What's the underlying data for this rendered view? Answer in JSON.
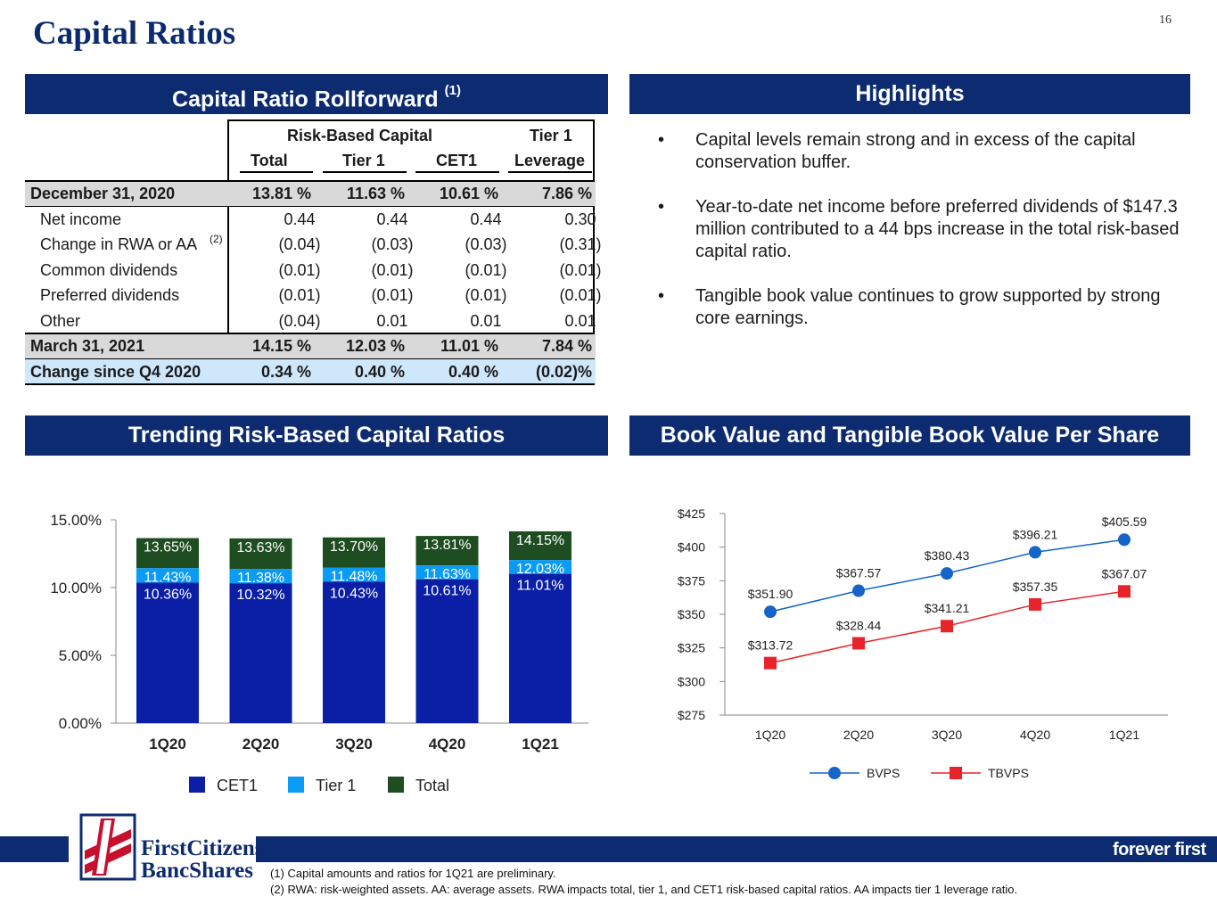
{
  "page": {
    "title": "Capital Ratios",
    "number": "16"
  },
  "rollforward": {
    "header": "Capital Ratio Rollforward",
    "header_note": "(1)",
    "group_labels": {
      "risk_based": "Risk-Based Capital",
      "tier1": "Tier 1"
    },
    "columns": [
      "Total",
      "Tier 1",
      "CET1",
      "Leverage"
    ],
    "rows": [
      {
        "label": "December 31, 2020",
        "values": [
          "13.81 %",
          "11.63 %",
          "10.61 %",
          "7.86 %"
        ]
      },
      {
        "label": "Net income",
        "values": [
          "0.44",
          "0.44",
          "0.44",
          "0.30"
        ]
      },
      {
        "label": "Change in RWA or AA",
        "note": "(2)",
        "values": [
          "(0.04)",
          "(0.03)",
          "(0.03)",
          "(0.31)"
        ]
      },
      {
        "label": "Common dividends",
        "values": [
          "(0.01)",
          "(0.01)",
          "(0.01)",
          "(0.01)"
        ]
      },
      {
        "label": "Preferred dividends",
        "values": [
          "(0.01)",
          "(0.01)",
          "(0.01)",
          "(0.01)"
        ]
      },
      {
        "label": "Other",
        "values": [
          "(0.04)",
          "0.01",
          "0.01",
          "0.01"
        ]
      },
      {
        "label": "March 31, 2021",
        "values": [
          "14.15 %",
          "12.03 %",
          "11.01 %",
          "7.84 %"
        ]
      },
      {
        "label": "Change since Q4 2020",
        "values": [
          "0.34 %",
          "0.40 %",
          "0.40 %",
          "(0.02)%"
        ]
      }
    ]
  },
  "highlights": {
    "header": "Highlights",
    "bullet": "•",
    "items": [
      "Capital levels remain strong and in excess of the capital conservation buffer.",
      "Year-to-date net income before preferred dividends of $147.3 million contributed to a 44 bps increase in the total risk-based capital ratio.",
      "Tangible book value continues to grow supported by strong core earnings."
    ]
  },
  "trending": {
    "header": "Trending Risk-Based Capital Ratios"
  },
  "book_value": {
    "header": "Book Value and Tangible Book Value Per Share"
  },
  "chart_data": [
    {
      "type": "bar",
      "title": "Trending Risk-Based Capital Ratios",
      "categories": [
        "1Q20",
        "2Q20",
        "3Q20",
        "4Q20",
        "1Q21"
      ],
      "series": [
        {
          "name": "CET1",
          "values": [
            10.36,
            10.32,
            10.43,
            10.61,
            11.01
          ],
          "labels": [
            "10.36%",
            "10.32%",
            "10.43%",
            "10.61%",
            "11.01%"
          ],
          "color": "#0b1fa6"
        },
        {
          "name": "Tier 1",
          "values": [
            11.43,
            11.38,
            11.48,
            11.63,
            12.03
          ],
          "labels": [
            "11.43%",
            "11.38%",
            "11.48%",
            "11.63%",
            "12.03%"
          ],
          "color": "#0a9bf5"
        },
        {
          "name": "Total",
          "values": [
            13.65,
            13.63,
            13.7,
            13.81,
            14.15
          ],
          "labels": [
            "13.65%",
            "13.63%",
            "13.70%",
            "13.81%",
            "14.15%"
          ],
          "color": "#1e4d22"
        }
      ],
      "yticks": [
        0,
        5,
        10,
        15
      ],
      "ytick_labels": [
        "0.00%",
        "5.00%",
        "10.00%",
        "15.00%"
      ],
      "ylim": [
        0,
        15
      ],
      "legend_position": "bottom"
    },
    {
      "type": "line",
      "title": "Book Value and Tangible Book Value Per Share",
      "categories": [
        "1Q20",
        "2Q20",
        "3Q20",
        "4Q20",
        "1Q21"
      ],
      "series": [
        {
          "name": "BVPS",
          "values": [
            351.9,
            367.57,
            380.43,
            396.21,
            405.59
          ],
          "labels": [
            "$351.90",
            "$367.57",
            "$380.43",
            "$396.21",
            "$405.59"
          ],
          "color": "#1565c8",
          "marker": "circle"
        },
        {
          "name": "TBVPS",
          "values": [
            313.72,
            328.44,
            341.21,
            357.35,
            367.07
          ],
          "labels": [
            "$313.72",
            "$328.44",
            "$341.21",
            "$357.35",
            "$367.07"
          ],
          "color": "#e8242b",
          "marker": "square"
        }
      ],
      "yticks": [
        275,
        300,
        325,
        350,
        375,
        400,
        425
      ],
      "ytick_labels": [
        "$275",
        "$300",
        "$325",
        "$350",
        "$375",
        "$400",
        "$425"
      ],
      "ylim": [
        275,
        425
      ],
      "legend_position": "bottom"
    }
  ],
  "footer": {
    "logo_line1": "FirstCitizens",
    "logo_line2": "BancShares",
    "tagline": "forever first",
    "notes": [
      "(1) Capital amounts and ratios for 1Q21 are preliminary.",
      "(2) RWA: risk-weighted assets. AA: average assets. RWA impacts total, tier 1, and CET1 risk-based capital ratios. AA impacts tier 1 leverage ratio."
    ]
  }
}
